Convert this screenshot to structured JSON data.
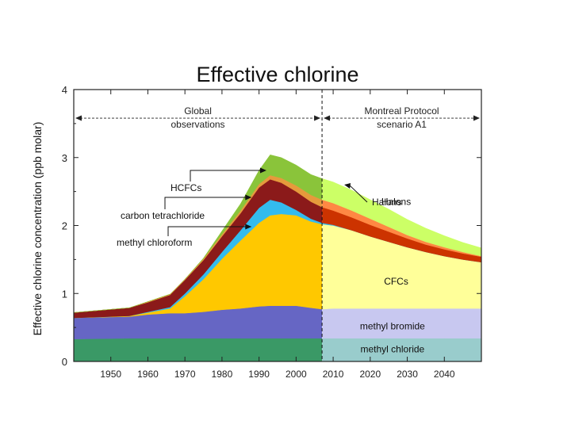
{
  "chart_data": {
    "type": "area",
    "title": "Effective chlorine",
    "xlabel": "",
    "ylabel": "Effective chlorine concentration (ppb molar)",
    "xlim": [
      1940,
      2050
    ],
    "ylim": [
      0,
      4
    ],
    "x_ticks": [
      1950,
      1960,
      1970,
      1980,
      1990,
      2000,
      2010,
      2020,
      2030,
      2040
    ],
    "y_ticks": [
      0,
      1,
      2,
      3,
      4
    ],
    "grid": false,
    "divider_year": 2007,
    "region_labels": {
      "left": [
        "Global",
        "observations"
      ],
      "right": [
        "Montreal Protocol",
        "scenario A1"
      ]
    },
    "x": [
      1940,
      1955,
      1960,
      1966,
      1970,
      1975,
      1980,
      1985,
      1990,
      1993,
      1996,
      2000,
      2004,
      2007,
      2010,
      2015,
      2020,
      2025,
      2030,
      2035,
      2040,
      2045,
      2050
    ],
    "series": [
      {
        "name": "methyl chloride",
        "color": "#3a9966",
        "future_color": "#99cccc",
        "values": [
          0.33,
          0.34,
          0.34,
          0.34,
          0.34,
          0.34,
          0.34,
          0.34,
          0.34,
          0.34,
          0.34,
          0.34,
          0.34,
          0.34,
          0.34,
          0.34,
          0.34,
          0.34,
          0.34,
          0.34,
          0.34,
          0.34,
          0.34
        ]
      },
      {
        "name": "methyl bromide",
        "color": "#6666c4",
        "future_color": "#c8c8f0",
        "values": [
          0.31,
          0.32,
          0.35,
          0.37,
          0.37,
          0.39,
          0.42,
          0.44,
          0.47,
          0.48,
          0.48,
          0.48,
          0.45,
          0.43,
          0.44,
          0.44,
          0.44,
          0.44,
          0.44,
          0.44,
          0.44,
          0.44,
          0.44
        ]
      },
      {
        "name": "CFCs",
        "color": "#ffc800",
        "future_color": "#ffff99",
        "values": [
          0,
          0.01,
          0.03,
          0.07,
          0.25,
          0.48,
          0.75,
          1.0,
          1.23,
          1.33,
          1.35,
          1.33,
          1.27,
          1.25,
          1.22,
          1.15,
          1.06,
          0.98,
          0.9,
          0.83,
          0.77,
          0.72,
          0.68
        ]
      },
      {
        "name": "methyl chloroform",
        "color": "#33bbee",
        "future_color": "#33bbee",
        "values": [
          0,
          0,
          0.01,
          0.02,
          0.04,
          0.07,
          0.1,
          0.15,
          0.22,
          0.23,
          0.17,
          0.08,
          0.04,
          0.02,
          0.01,
          0,
          0,
          0,
          0,
          0,
          0,
          0,
          0
        ]
      },
      {
        "name": "carbon tetrachloride",
        "color": "#8b1a1a",
        "future_color": "#cc3300",
        "values": [
          0.08,
          0.12,
          0.14,
          0.18,
          0.2,
          0.21,
          0.23,
          0.25,
          0.3,
          0.3,
          0.29,
          0.27,
          0.25,
          0.23,
          0.21,
          0.19,
          0.17,
          0.15,
          0.13,
          0.11,
          0.1,
          0.09,
          0.08
        ]
      },
      {
        "name": "HCFCs",
        "color": "#e69a3c",
        "future_color": "#ff8844",
        "values": [
          0,
          0,
          0.01,
          0.01,
          0.01,
          0.02,
          0.03,
          0.04,
          0.05,
          0.06,
          0.07,
          0.09,
          0.1,
          0.11,
          0.11,
          0.1,
          0.09,
          0.07,
          0.05,
          0.04,
          0.03,
          0.02,
          0.01
        ]
      },
      {
        "name": "Halons",
        "color": "#8ac43a",
        "future_color": "#ccff66",
        "values": [
          0,
          0,
          0,
          0,
          0,
          0.01,
          0.05,
          0.1,
          0.2,
          0.3,
          0.3,
          0.3,
          0.3,
          0.31,
          0.31,
          0.3,
          0.28,
          0.26,
          0.23,
          0.2,
          0.17,
          0.14,
          0.12
        ]
      }
    ],
    "annotations": [
      {
        "text": "HCFCs",
        "target_year": 1992,
        "target_value": 2.82
      },
      {
        "text": "carbon tetrachloride",
        "target_year": 1988,
        "target_value": 2.45
      },
      {
        "text": "methyl chloroform",
        "target_year": 1988,
        "target_value": 2.01
      },
      {
        "text": "Halons",
        "target_year": 2013,
        "target_value": 2.6
      }
    ],
    "series_labels": [
      {
        "text": "Halons",
        "year": 2027,
        "value": 2.35
      },
      {
        "text": "CFCs",
        "year": 2027,
        "value": 1.18
      },
      {
        "text": "methyl bromide",
        "year": 2026,
        "value": 0.52
      },
      {
        "text": "methyl chloride",
        "year": 2026,
        "value": 0.18
      }
    ]
  }
}
